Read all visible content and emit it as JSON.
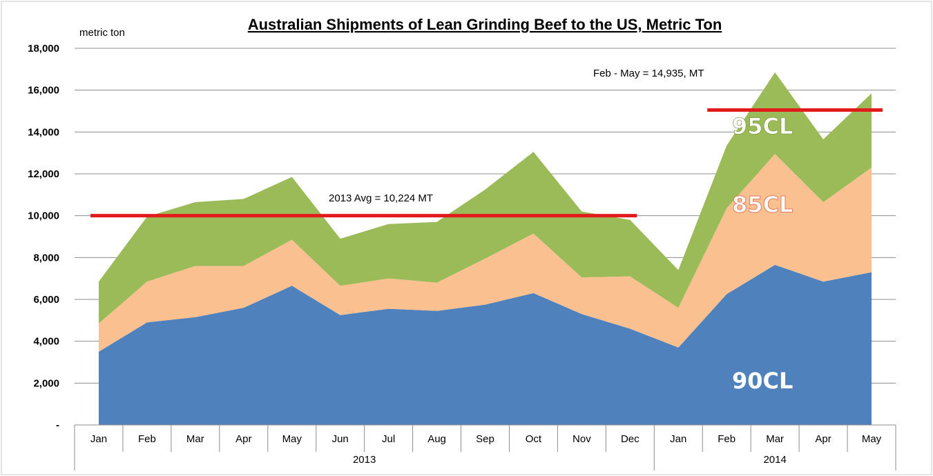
{
  "chart_data": {
    "type": "area",
    "stacked": true,
    "title": "Australian  Shipments of Lean Grinding  Beef to the US, Metric Ton",
    "ylabel": "metric ton",
    "xlabel": "",
    "ylim": [
      0,
      18000
    ],
    "yticks": [
      0,
      2000,
      4000,
      6000,
      8000,
      10000,
      12000,
      14000,
      16000,
      18000
    ],
    "ytick_labels": [
      "-",
      "2,000",
      "4,000",
      "6,000",
      "8,000",
      "10,000",
      "12,000",
      "14,000",
      "16,000",
      "18,000"
    ],
    "grid": true,
    "categories": [
      "Jan",
      "Feb",
      "Mar",
      "Apr",
      "May",
      "Jun",
      "Jul",
      "Aug",
      "Sep",
      "Oct",
      "Nov",
      "Dec",
      "Jan",
      "Feb",
      "Mar",
      "Apr",
      "May"
    ],
    "groups": [
      {
        "label": "2013",
        "count": 12
      },
      {
        "label": "2014",
        "count": 5
      }
    ],
    "series": [
      {
        "name": "90CL",
        "color": "#4F81BD",
        "label_color": "#ffffff",
        "values": [
          3500,
          4900,
          5150,
          5600,
          6650,
          5250,
          5550,
          5450,
          5750,
          6300,
          5300,
          4600,
          3700,
          6250,
          7650,
          6850,
          7300
        ]
      },
      {
        "name": "85CL",
        "color": "#FAC090",
        "label_color": "#ffffff",
        "values": [
          1350,
          1950,
          2450,
          2000,
          2200,
          1400,
          1450,
          1350,
          2200,
          2850,
          1750,
          2500,
          1900,
          4100,
          5300,
          3800,
          5000
        ]
      },
      {
        "name": "95CL",
        "color": "#9BBB59",
        "label_color": "#ffffff",
        "values": [
          2000,
          3100,
          3050,
          3200,
          3000,
          2250,
          2600,
          2900,
          3300,
          3900,
          3150,
          2700,
          1800,
          3000,
          3900,
          3000,
          3550
        ]
      }
    ],
    "reference_lines": [
      {
        "label": "2013 Avg = 10,224 MT",
        "value": 10000,
        "from_index": 0,
        "to_index": 11,
        "color": "#E31A1C"
      },
      {
        "label": "Feb - May = 14,935,  MT",
        "value": 15050,
        "from_index": 13,
        "to_index": 16,
        "color": "#E31A1C"
      }
    ]
  }
}
